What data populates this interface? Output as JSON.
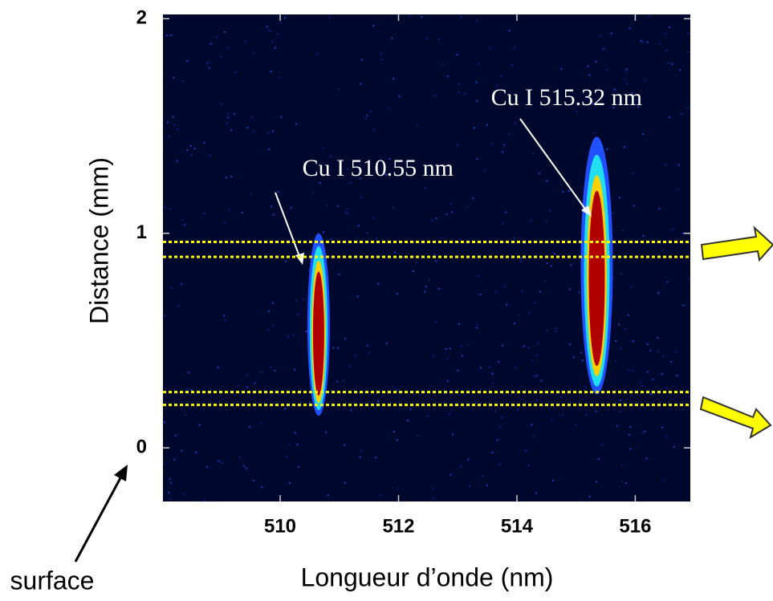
{
  "chart_data": {
    "type": "spectral-image",
    "x_label": "Longueur d’onde (nm)",
    "y_label": "Distance (mm)",
    "xlim": [
      508.02,
      516.93
    ],
    "ylim": [
      -0.25,
      2.02
    ],
    "xticks": [
      510,
      512,
      514,
      516
    ],
    "yticks": [
      0,
      1,
      2
    ],
    "series": [
      {
        "name": "Cu I 510.55 nm",
        "x": 510.65,
        "y": [
          0.15,
          1.0
        ]
      },
      {
        "name": "Cu I 515.32 nm",
        "x": 515.35,
        "y": [
          0.25,
          1.45
        ]
      }
    ],
    "hlines": [
      0.96,
      0.89,
      0.26,
      0.2
    ],
    "hline_color": "#ffff00",
    "annotation": "surface"
  }
}
